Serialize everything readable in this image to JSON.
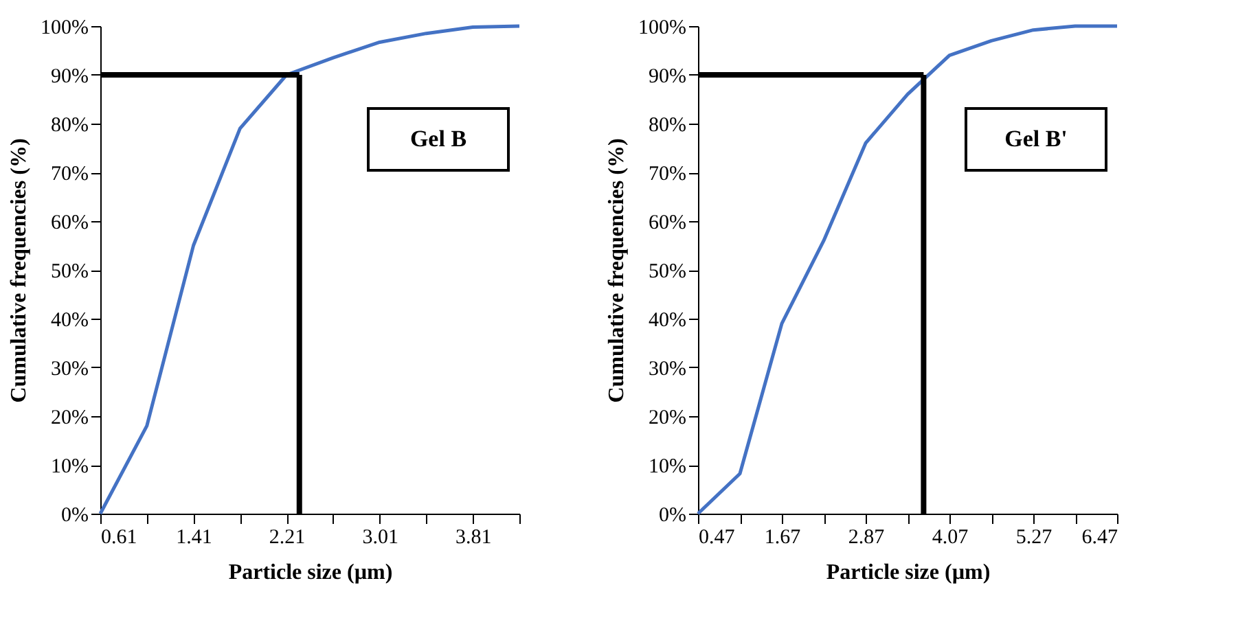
{
  "chart_data": [
    {
      "type": "line",
      "xlabel": "Particle size (µm)",
      "ylabel": "Cumulative frequencies (%)",
      "annotations": [
        "Gel B"
      ],
      "x": [
        0.61,
        1.01,
        1.41,
        1.81,
        2.21,
        2.61,
        3.01,
        3.41,
        3.81,
        4.21
      ],
      "series": [
        {
          "color": "#4472c4",
          "values": [
            0,
            18,
            55,
            79,
            90,
            93.5,
            96.7,
            98.5,
            99.8,
            100
          ]
        }
      ],
      "xlim": [
        0.61,
        4.21
      ],
      "ylim": [
        0,
        100
      ],
      "xticks": [
        0.61,
        {
          "value": 1.01,
          "label": null
        },
        1.41,
        {
          "value": 1.81,
          "label": null
        },
        2.21,
        {
          "value": 2.61,
          "label": null
        },
        3.01,
        {
          "value": 3.41,
          "label": null
        },
        3.81,
        {
          "value": 4.21,
          "label": null
        }
      ],
      "yticks": [
        {
          "value": 0,
          "label": "0%"
        },
        {
          "value": 10,
          "label": "10%"
        },
        {
          "value": 20,
          "label": "20%"
        },
        {
          "value": 30,
          "label": "30%"
        },
        {
          "value": 40,
          "label": "40%"
        },
        {
          "value": 50,
          "label": "50%"
        },
        {
          "value": 60,
          "label": "60%"
        },
        {
          "value": 70,
          "label": "70%"
        },
        {
          "value": 80,
          "label": "80%"
        },
        {
          "value": 90,
          "label": "90%"
        },
        {
          "value": 100,
          "label": "100%"
        }
      ],
      "ref_lines": [
        {
          "axis": "y",
          "value": 90,
          "color": "#000000"
        },
        {
          "axis": "x",
          "value": 2.32,
          "color": "#000000"
        }
      ],
      "marker": "none",
      "line_style": "solid"
    },
    {
      "type": "line",
      "xlabel": "Particle size (µm)",
      "ylabel": "Cumulative frequencies (%)",
      "annotations": [
        "Gel B'"
      ],
      "x": [
        0.47,
        1.07,
        1.67,
        2.27,
        2.87,
        3.47,
        4.07,
        4.67,
        5.27,
        5.87,
        6.47
      ],
      "series": [
        {
          "color": "#4472c4",
          "values": [
            0,
            8.2,
            39,
            56,
            76,
            86,
            94,
            97,
            99.2,
            100,
            100
          ]
        }
      ],
      "xlim": [
        0.47,
        6.47
      ],
      "ylim": [
        0,
        100
      ],
      "xticks": [
        0.47,
        {
          "value": 1.07,
          "label": null
        },
        1.67,
        {
          "value": 2.27,
          "label": null
        },
        2.87,
        {
          "value": 3.47,
          "label": null
        },
        4.07,
        {
          "value": 4.67,
          "label": null
        },
        5.27,
        {
          "value": 5.87,
          "label": null
        },
        6.47
      ],
      "yticks": [
        {
          "value": 0,
          "label": "0%"
        },
        {
          "value": 10,
          "label": "10%"
        },
        {
          "value": 20,
          "label": "20%"
        },
        {
          "value": 30,
          "label": "30%"
        },
        {
          "value": 40,
          "label": "40%"
        },
        {
          "value": 50,
          "label": "50%"
        },
        {
          "value": 60,
          "label": "60%"
        },
        {
          "value": 70,
          "label": "70%"
        },
        {
          "value": 80,
          "label": "80%"
        },
        {
          "value": 90,
          "label": "90%"
        },
        {
          "value": 100,
          "label": "100%"
        }
      ],
      "ref_lines": [
        {
          "axis": "y",
          "value": 90,
          "color": "#000000"
        },
        {
          "axis": "x",
          "value": 3.7,
          "color": "#000000"
        }
      ],
      "marker": "none",
      "line_style": "solid"
    }
  ]
}
